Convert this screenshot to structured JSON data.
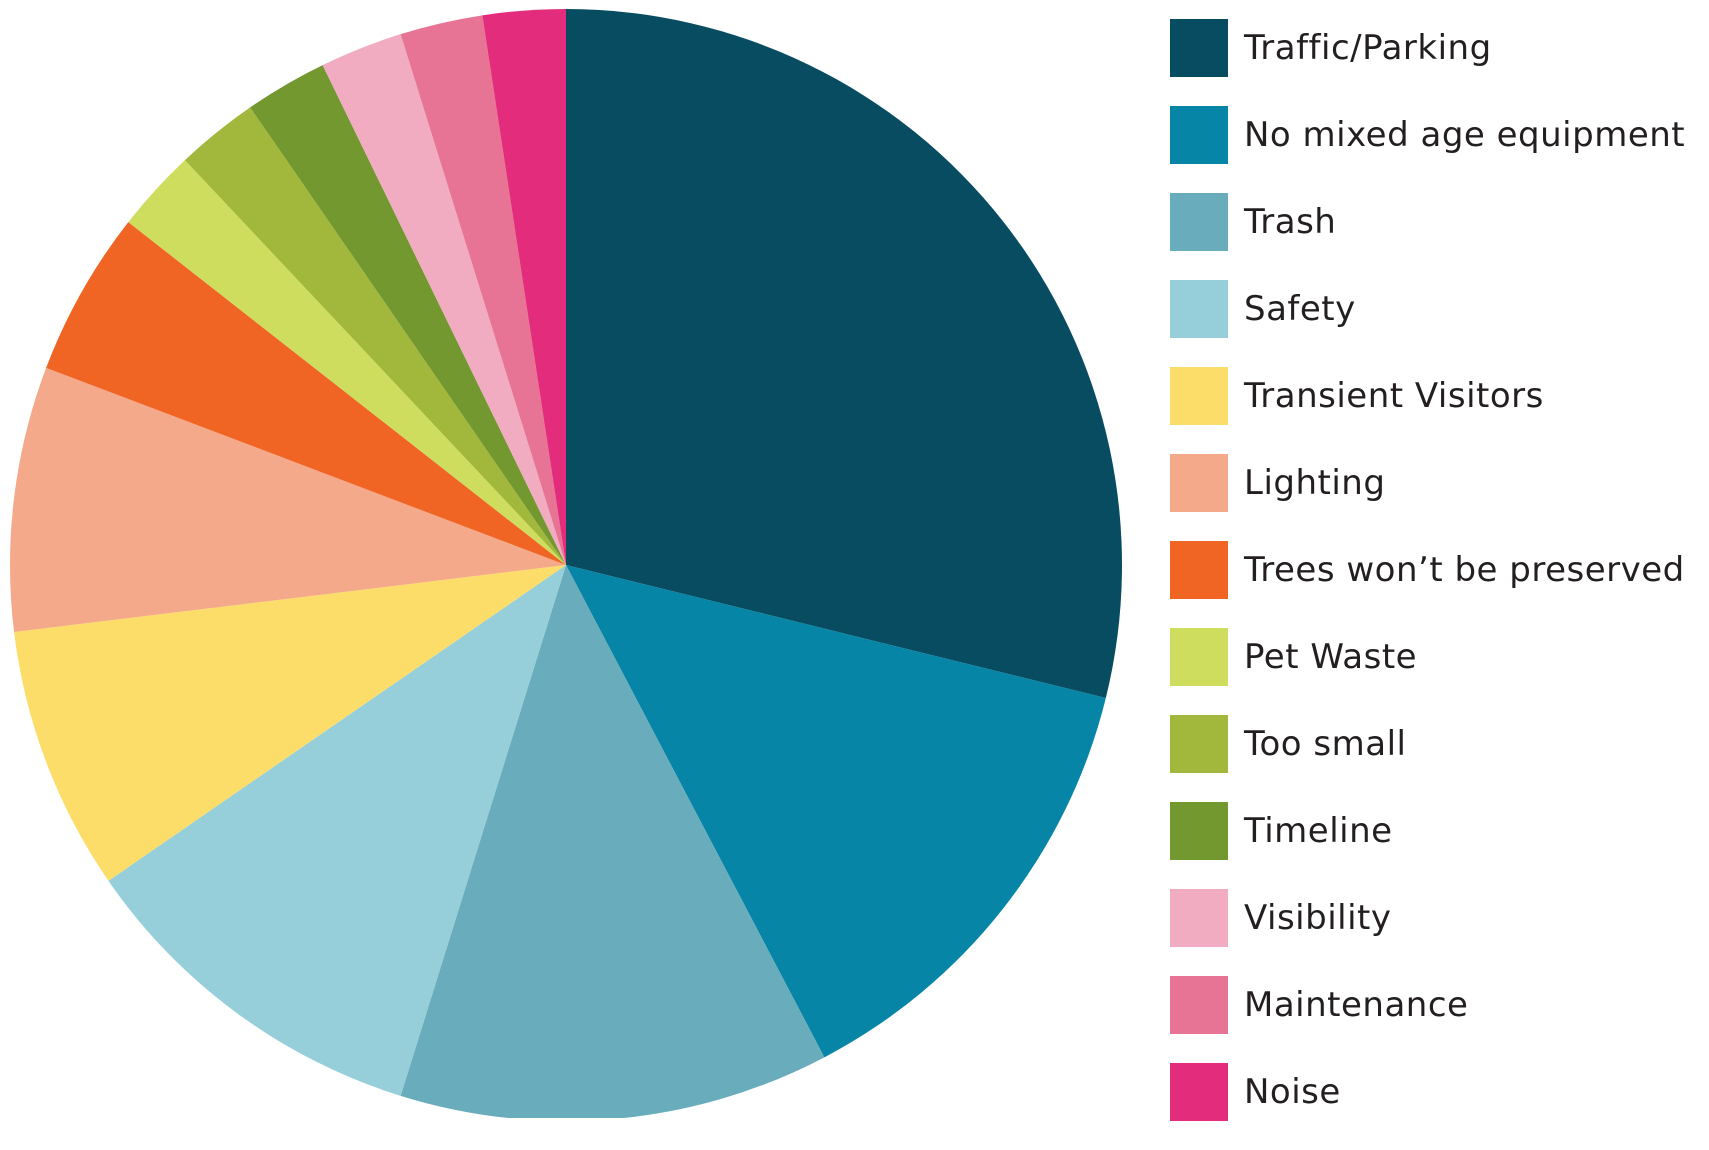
{
  "chart_data": {
    "type": "pie",
    "title": "",
    "start": "top",
    "direction": "clockwise",
    "slices": [
      {
        "label": "Traffic/Parking",
        "value": 30,
        "color": "#084c61"
      },
      {
        "label": "No mixed age equipment",
        "value": 14,
        "color": "#0685a6"
      },
      {
        "label": "Trash",
        "value": 13,
        "color": "#69adbc"
      },
      {
        "label": "Safety",
        "value": 11,
        "color": "#96cfda"
      },
      {
        "label": "Transient Visitors",
        "value": 8,
        "color": "#fddd6a"
      },
      {
        "label": "Lighting",
        "value": 8,
        "color": "#f4a98a"
      },
      {
        "label": "Trees won’t be preserved",
        "value": 5,
        "color": "#f06424"
      },
      {
        "label": "Pet Waste",
        "value": 2.5,
        "color": "#cfdd5f"
      },
      {
        "label": "Too small",
        "value": 2.5,
        "color": "#a2b83c"
      },
      {
        "label": "Timeline",
        "value": 2.5,
        "color": "#72982f"
      },
      {
        "label": "Visibility",
        "value": 2.5,
        "color": "#f1acc1"
      },
      {
        "label": "Maintenance",
        "value": 2.5,
        "color": "#e77494"
      },
      {
        "label": "Noise",
        "value": 2.5,
        "color": "#e32d7c"
      }
    ],
    "legend": {
      "position": "right"
    }
  }
}
